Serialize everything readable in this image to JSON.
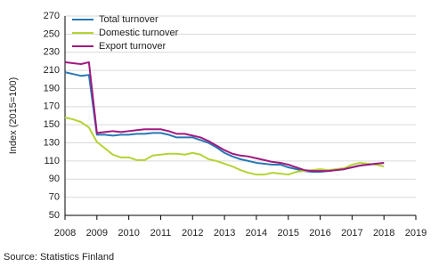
{
  "chart_data": {
    "type": "line",
    "y_label": "Index (2015=100)",
    "source": "Source: Statistics Finland",
    "x": [
      2008,
      2008.25,
      2008.5,
      2008.75,
      2009,
      2009.25,
      2009.5,
      2009.75,
      2010,
      2010.25,
      2010.5,
      2010.75,
      2011,
      2011.25,
      2011.5,
      2011.75,
      2012,
      2012.25,
      2012.5,
      2012.75,
      2013,
      2013.25,
      2013.5,
      2013.75,
      2014,
      2014.25,
      2014.5,
      2014.75,
      2015,
      2015.25,
      2015.5,
      2015.75,
      2016,
      2016.25,
      2016.5,
      2016.75,
      2017,
      2017.25,
      2017.5,
      2017.75,
      2018
    ],
    "series": [
      {
        "name": "Total turnover",
        "color": "#2878b4",
        "values": [
          208,
          206,
          204,
          205,
          139,
          139,
          138,
          139,
          139,
          140,
          140,
          141,
          141,
          139,
          136,
          136,
          136,
          133,
          130,
          125,
          119,
          115,
          112,
          110,
          108,
          107,
          106,
          106,
          103,
          101,
          99,
          98,
          98,
          99,
          100,
          101,
          103,
          105,
          106,
          107,
          108
        ]
      },
      {
        "name": "Domestic turnover",
        "color": "#b4d335",
        "values": [
          158,
          156,
          153,
          147,
          131,
          124,
          117,
          114,
          114,
          111,
          111,
          116,
          117,
          118,
          118,
          117,
          119,
          117,
          112,
          110,
          107,
          104,
          100,
          97,
          95,
          95,
          97,
          96,
          95,
          98,
          99,
          100,
          101,
          100,
          101,
          102,
          106,
          108,
          107,
          106,
          104
        ]
      },
      {
        "name": "Export turnover",
        "color": "#a0197f",
        "values": [
          219,
          218,
          217,
          219,
          141,
          142,
          143,
          142,
          143,
          144,
          145,
          145,
          145,
          143,
          140,
          140,
          138,
          136,
          132,
          127,
          122,
          118,
          116,
          115,
          113,
          111,
          109,
          108,
          106,
          103,
          100,
          99,
          99,
          99,
          100,
          101,
          103,
          105,
          106,
          107,
          108
        ]
      }
    ],
    "xlim": [
      2008,
      2019
    ],
    "xticks": [
      2008,
      2009,
      2010,
      2011,
      2012,
      2013,
      2014,
      2015,
      2016,
      2017,
      2018,
      2019
    ],
    "ylim": [
      50,
      270
    ],
    "yticks": [
      50,
      70,
      90,
      110,
      130,
      150,
      170,
      190,
      210,
      230,
      250,
      270
    ],
    "grid": true,
    "legend": "top-left"
  }
}
